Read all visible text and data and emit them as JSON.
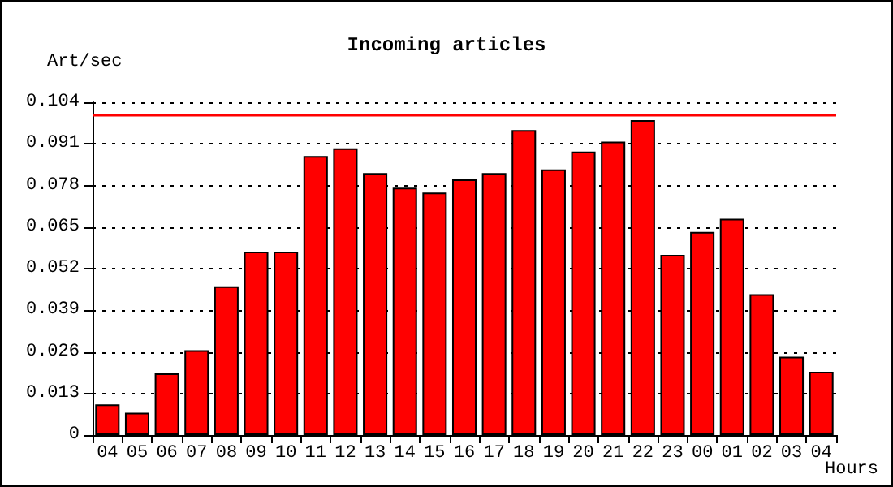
{
  "chart_data": {
    "type": "bar",
    "title": "Incoming articles",
    "ylabel": "Art/sec",
    "xlabel": "Hours",
    "categories": [
      "04",
      "05",
      "06",
      "07",
      "08",
      "09",
      "10",
      "11",
      "12",
      "13",
      "14",
      "15",
      "16",
      "17",
      "18",
      "19",
      "20",
      "21",
      "22",
      "23",
      "00",
      "01",
      "02",
      "03",
      "04"
    ],
    "values": [
      0.0096,
      0.007,
      0.0193,
      0.0265,
      0.0465,
      0.0573,
      0.0573,
      0.0872,
      0.0896,
      0.0819,
      0.0773,
      0.0758,
      0.0799,
      0.0819,
      0.0953,
      0.083,
      0.0886,
      0.0917,
      0.0984,
      0.0563,
      0.0635,
      0.0676,
      0.044,
      0.0245,
      0.0198
    ],
    "color": "#ff0000",
    "ylim": [
      0,
      0.104
    ],
    "yticks": [
      0,
      0.013,
      0.026,
      0.039,
      0.052,
      0.065,
      0.078,
      0.091,
      0.104
    ],
    "grid": "y",
    "ref_lines": [
      {
        "axis": "y",
        "value": 0.0998,
        "color": "#ff0000",
        "line_style": "solid"
      }
    ]
  }
}
